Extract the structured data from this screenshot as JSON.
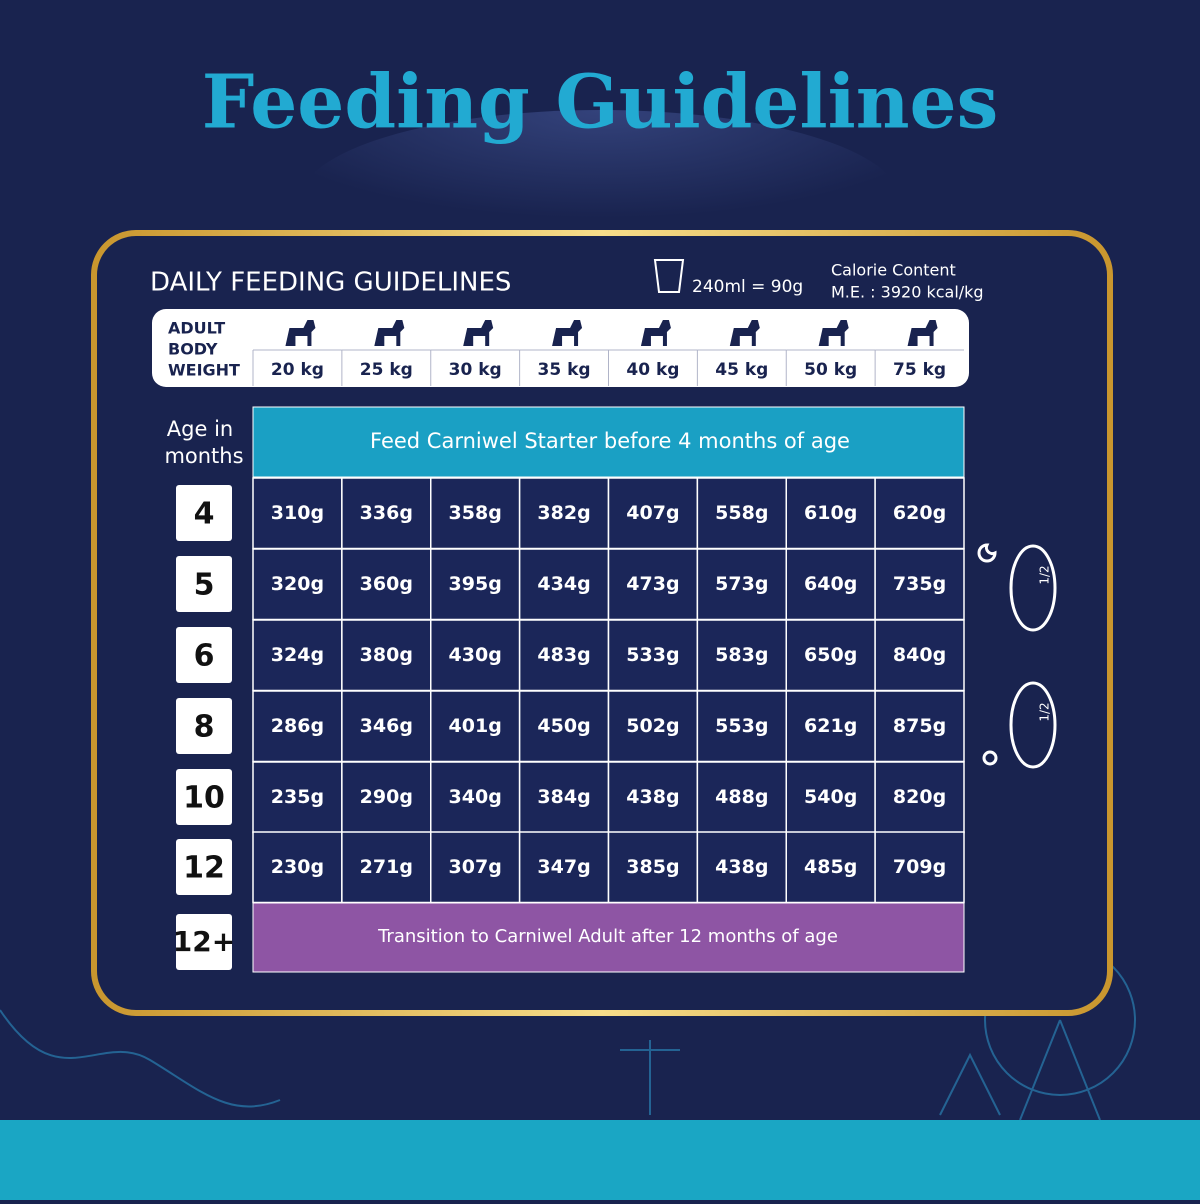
{
  "header": {
    "title": "Feeding Guidelines"
  },
  "panel": {
    "heading": "DAILY FEEDING GUIDELINES",
    "measure": "240ml = 90g",
    "calorie": [
      "Calorie Content",
      "M.E. : 3920 kcal/kg"
    ]
  },
  "table": {
    "weight_label": [
      "ADULT",
      "BODY",
      "WEIGHT"
    ],
    "weights": [
      "20 kg",
      "25 kg",
      "30 kg",
      "35 kg",
      "40 kg",
      "45 kg",
      "50 kg",
      "75 kg"
    ],
    "age_label": [
      "Age in",
      "months"
    ],
    "starter_note": "Feed Carniwel Starter before 4 months of age",
    "rows": [
      {
        "age": "4",
        "values": [
          "310g",
          "336g",
          "358g",
          "382g",
          "407g",
          "558g",
          "610g",
          "620g"
        ]
      },
      {
        "age": "5",
        "values": [
          "320g",
          "360g",
          "395g",
          "434g",
          "473g",
          "573g",
          "640g",
          "735g"
        ]
      },
      {
        "age": "6",
        "values": [
          "324g",
          "380g",
          "430g",
          "483g",
          "533g",
          "583g",
          "650g",
          "840g"
        ]
      },
      {
        "age": "8",
        "values": [
          "286g",
          "346g",
          "401g",
          "450g",
          "502g",
          "553g",
          "621g",
          "875g"
        ]
      },
      {
        "age": "10",
        "values": [
          "235g",
          "290g",
          "340g",
          "384g",
          "438g",
          "488g",
          "540g",
          "820g"
        ]
      },
      {
        "age": "12",
        "values": [
          "230g",
          "271g",
          "307g",
          "347g",
          "385g",
          "438g",
          "485g",
          "709g"
        ]
      }
    ],
    "last_age": "12+",
    "transition_note": "Transition to Carniwel Adult after 12 months of age"
  },
  "bowls": [
    "1/2",
    "1/2"
  ]
}
